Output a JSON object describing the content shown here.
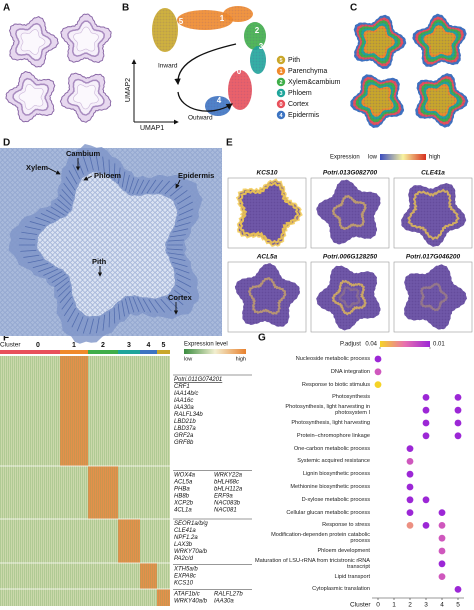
{
  "panels": {
    "a": {
      "label": "A"
    },
    "b": {
      "label": "B",
      "x_axis": "UMAP1",
      "y_axis": "UMAP2",
      "inward": "Inward",
      "outward": "Outward",
      "legend": [
        {
          "cluster": "5",
          "name": "Pith",
          "color": "#c9a72a"
        },
        {
          "cluster": "1",
          "name": "Parenchyma",
          "color": "#f08a2c"
        },
        {
          "cluster": "2",
          "name": "Xylem&cambium",
          "color": "#3fae49"
        },
        {
          "cluster": "3",
          "name": "Phloem",
          "color": "#1fa59b"
        },
        {
          "cluster": "0",
          "name": "Cortex",
          "color": "#e8505b"
        },
        {
          "cluster": "4",
          "name": "Epidermis",
          "color": "#3d74c2"
        }
      ]
    },
    "c": {
      "label": "C"
    },
    "d": {
      "label": "D",
      "annotations": [
        "Cambium",
        "Xylem",
        "Phloem",
        "Epidermis",
        "Pith",
        "Cortex"
      ]
    },
    "e": {
      "label": "E",
      "legend_title": "Expression",
      "low": "low",
      "high": "high",
      "genes": [
        "KCS10",
        "Potri.013G082700",
        "CLE41a",
        "ACL5a",
        "Potri.006G128250",
        "Potri.017G046200"
      ]
    },
    "f": {
      "label": "F",
      "cluster_label": "Cluster",
      "clusters": [
        "0",
        "1",
        "2",
        "3",
        "4",
        "5"
      ],
      "legend_title": "Expression level",
      "low": "low",
      "high": "high",
      "gene_groups": [
        {
          "left": [
            "Potri.011G074201",
            "CRF1",
            "IAA14b/c",
            "IAA16c",
            "IAA30a",
            "RALFL34b",
            "LBD21b",
            "LBD37a",
            "GRF2a",
            "GRF8b"
          ],
          "right": []
        },
        {
          "left": [
            "WOX4a",
            "ACL5a",
            "PHBa",
            "HB8b",
            "XCP2b",
            "4CL1a"
          ],
          "right": [
            "WRKY22a",
            "bHLH68c",
            "bHLH112a",
            "ERF9a",
            "NAC083b",
            "NAC081"
          ]
        },
        {
          "left": [
            "SEOR1a/b/g",
            "CLE41a",
            "NPF1.2a",
            "LAX3b",
            "WRKY70a/b",
            "PA2c/d"
          ],
          "right": []
        },
        {
          "left": [
            "XTH5a/b",
            "EXPA8c",
            "KCS10"
          ],
          "right": []
        },
        {
          "left": [
            "ATAF1b/c",
            "WRKY40a/b"
          ],
          "right": [
            "RALFL27b",
            "IAA30a"
          ]
        }
      ]
    },
    "g": {
      "label": "G",
      "legend_title": "P.adjust",
      "legend_ticks": [
        0.04,
        0.01
      ],
      "x_label": "Cluster",
      "x_ticks": [
        0,
        1,
        2,
        3,
        4,
        5
      ],
      "terms": [
        {
          "name": "Nucleoside metabolic process",
          "dots": [
            {
              "cluster": 0,
              "p": 0.01
            }
          ]
        },
        {
          "name": "DNA integration",
          "dots": [
            {
              "cluster": 0,
              "p": 0.02
            }
          ]
        },
        {
          "name": "Response to biotic stimulus",
          "dots": [
            {
              "cluster": 0,
              "p": 0.04
            }
          ]
        },
        {
          "name": "Photosynthesis",
          "dots": [
            {
              "cluster": 3,
              "p": 0.01
            },
            {
              "cluster": 5,
              "p": 0.01
            }
          ]
        },
        {
          "name": "Photosynthesis, light harvesting in photosystem I",
          "dots": [
            {
              "cluster": 3,
              "p": 0.01
            },
            {
              "cluster": 5,
              "p": 0.01
            }
          ]
        },
        {
          "name": "Photosynthesis, light harvesting",
          "dots": [
            {
              "cluster": 3,
              "p": 0.01
            },
            {
              "cluster": 5,
              "p": 0.01
            }
          ]
        },
        {
          "name": "Protein–chromophore linkage",
          "dots": [
            {
              "cluster": 3,
              "p": 0.01
            },
            {
              "cluster": 5,
              "p": 0.01
            }
          ]
        },
        {
          "name": "One-carbon metabolic process",
          "dots": [
            {
              "cluster": 2,
              "p": 0.01
            }
          ]
        },
        {
          "name": "Systemic acquired resistance",
          "dots": [
            {
              "cluster": 2,
              "p": 0.02
            }
          ]
        },
        {
          "name": "Lignin biosynthetic process",
          "dots": [
            {
              "cluster": 2,
              "p": 0.01
            }
          ]
        },
        {
          "name": "Methionine biosynthetic process",
          "dots": [
            {
              "cluster": 2,
              "p": 0.01
            }
          ]
        },
        {
          "name": "D-xylose metabolic process",
          "dots": [
            {
              "cluster": 2,
              "p": 0.01
            },
            {
              "cluster": 3,
              "p": 0.01
            }
          ]
        },
        {
          "name": "Cellular glucan metabolic process",
          "dots": [
            {
              "cluster": 2,
              "p": 0.01
            },
            {
              "cluster": 4,
              "p": 0.01
            }
          ]
        },
        {
          "name": "Response to stress",
          "dots": [
            {
              "cluster": 2,
              "p": 0.03
            },
            {
              "cluster": 3,
              "p": 0.01
            },
            {
              "cluster": 4,
              "p": 0.02
            }
          ]
        },
        {
          "name": "Modification-dependen protein catabolic process",
          "dots": [
            {
              "cluster": 4,
              "p": 0.02
            }
          ]
        },
        {
          "name": "Phloem development",
          "dots": [
            {
              "cluster": 4,
              "p": 0.02
            }
          ]
        },
        {
          "name": "Maturation of LSU-rRNA from tricistronic rRNA transcript",
          "dots": [
            {
              "cluster": 4,
              "p": 0.01
            }
          ]
        },
        {
          "name": "Lipid transport",
          "dots": [
            {
              "cluster": 4,
              "p": 0.02
            }
          ]
        },
        {
          "name": "Cytoplasmic translation",
          "dots": [
            {
              "cluster": 5,
              "p": 0.01
            }
          ]
        }
      ]
    }
  }
}
